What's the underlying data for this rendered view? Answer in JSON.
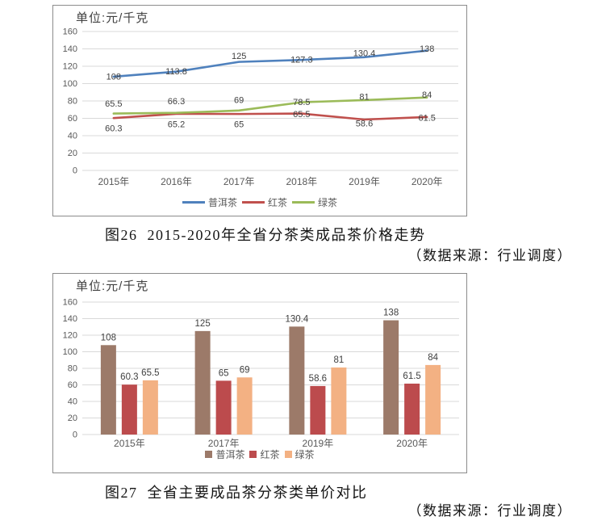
{
  "figures": [
    {
      "caption": "图26  2015-2020年全省分茶类成品茶价格走势",
      "source": "（数据来源：行业调度）"
    },
    {
      "caption": "图27  全省主要成品茶分茶类单价对比",
      "source": "（数据来源：行业调度）"
    }
  ],
  "chart_data": [
    {
      "type": "line",
      "title": "图26  2015-2020年全省分茶类成品茶价格走势",
      "unit_label": "单位:元/千克",
      "categories": [
        "2015年",
        "2016年",
        "2017年",
        "2018年",
        "2019年",
        "2020年"
      ],
      "series": [
        {
          "name": "普洱茶",
          "color": "#4F81BD",
          "values": [
            108,
            113.8,
            125,
            127.3,
            130.4,
            138
          ]
        },
        {
          "name": "红茶",
          "color": "#C0504D",
          "values": [
            60.3,
            65.2,
            65,
            65.5,
            58.6,
            61.5
          ]
        },
        {
          "name": "绿茶",
          "color": "#9BBB59",
          "values": [
            65.5,
            66.3,
            69,
            78.5,
            81,
            84
          ]
        }
      ],
      "ylim": [
        0,
        160
      ],
      "ytick_step": 20,
      "grid": true,
      "legend_position": "bottom",
      "source": "（数据来源：行业调度）"
    },
    {
      "type": "bar",
      "title": "图27  全省主要成品茶分茶类单价对比",
      "unit_label": "单位:元/千克",
      "categories": [
        "2015年",
        "2017年",
        "2019年",
        "2020年"
      ],
      "series": [
        {
          "name": "普洱茶",
          "color": "#9C7A69",
          "values": [
            108,
            125,
            130.4,
            138
          ]
        },
        {
          "name": "红茶",
          "color": "#BC4B4D",
          "values": [
            60.3,
            65,
            58.6,
            61.5
          ]
        },
        {
          "name": "绿茶",
          "color": "#F3B183",
          "values": [
            65.5,
            69,
            81,
            84
          ]
        }
      ],
      "ylim": [
        0,
        160
      ],
      "ytick_step": 20,
      "grid": true,
      "legend_position": "bottom",
      "source": "（数据来源：行业调度）"
    }
  ],
  "colors": {
    "gridline": "#d9d9d9",
    "axis_text": "#595959",
    "data_label": "#404040",
    "panel_border": "#8c8c8c"
  }
}
